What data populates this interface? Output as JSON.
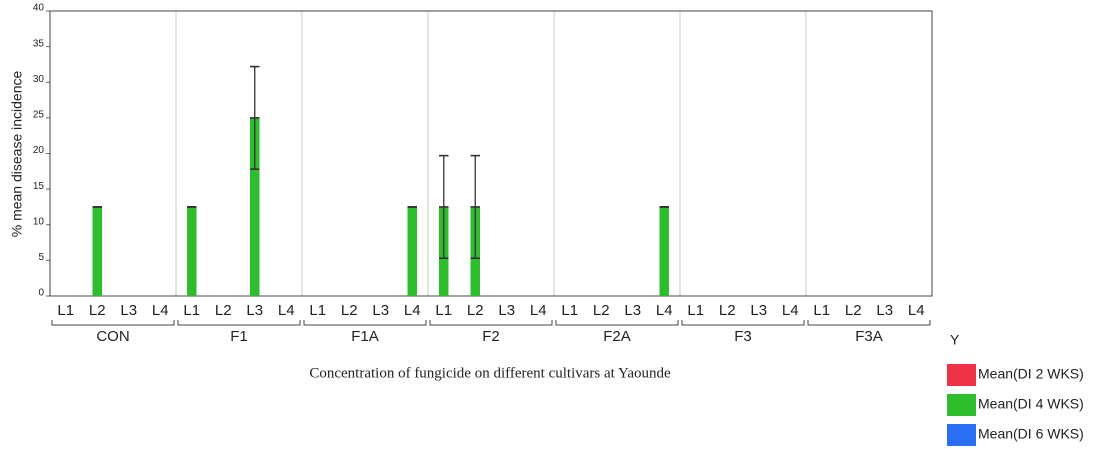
{
  "chart_data": {
    "type": "bar",
    "y_label": "% mean disease incidence",
    "x_label": "Concentration of fungicide on different cultivars at Yaounde",
    "legend_title": "Y",
    "category_groups": [
      "CON",
      "F1",
      "F1A",
      "F2",
      "F2A",
      "F3",
      "F3A"
    ],
    "categories": [
      "L1",
      "L2",
      "L3",
      "L4",
      "L1",
      "L2",
      "L3",
      "L4",
      "L1",
      "L2",
      "L3",
      "L4",
      "L1",
      "L2",
      "L3",
      "L4",
      "L1",
      "L2",
      "L3",
      "L4",
      "L1",
      "L2",
      "L3",
      "L4",
      "L1",
      "L2",
      "L3",
      "L4"
    ],
    "series": [
      {
        "name": "Mean(DI 2 WKS)",
        "color": "#ee3349",
        "values": [
          0,
          0,
          0,
          0,
          0,
          0,
          0,
          0,
          0,
          0,
          0,
          0,
          0,
          0,
          0,
          0,
          0,
          0,
          0,
          0,
          0,
          0,
          0,
          0,
          0,
          0,
          0,
          0
        ]
      },
      {
        "name": "Mean(DI 4 WKS)",
        "color": "#2dbd2d",
        "values": [
          0,
          12.5,
          0,
          0,
          12.5,
          0,
          25,
          0,
          0,
          0,
          0,
          12.5,
          12.5,
          12.5,
          0,
          0,
          0,
          0,
          0,
          12.5,
          0,
          0,
          0,
          0,
          0,
          0,
          0,
          0
        ],
        "errors": [
          0,
          0,
          0,
          0,
          0,
          0,
          7.2,
          0,
          0,
          0,
          0,
          0,
          7.2,
          7.2,
          0,
          0,
          0,
          0,
          0,
          0,
          0,
          0,
          0,
          0,
          0,
          0,
          0,
          0
        ]
      },
      {
        "name": "Mean(DI 6 WKS)",
        "color": "#2a6ef4",
        "values": [
          0,
          0,
          0,
          0,
          0,
          0,
          0,
          0,
          0,
          0,
          0,
          0,
          0,
          0,
          0,
          0,
          0,
          0,
          0,
          0,
          0,
          0,
          0,
          0,
          0,
          0,
          0,
          0
        ]
      }
    ],
    "ylim": [
      0,
      40
    ],
    "yticks": [
      0,
      5,
      10,
      15,
      20,
      25,
      30,
      35,
      40
    ],
    "legend": "right"
  }
}
